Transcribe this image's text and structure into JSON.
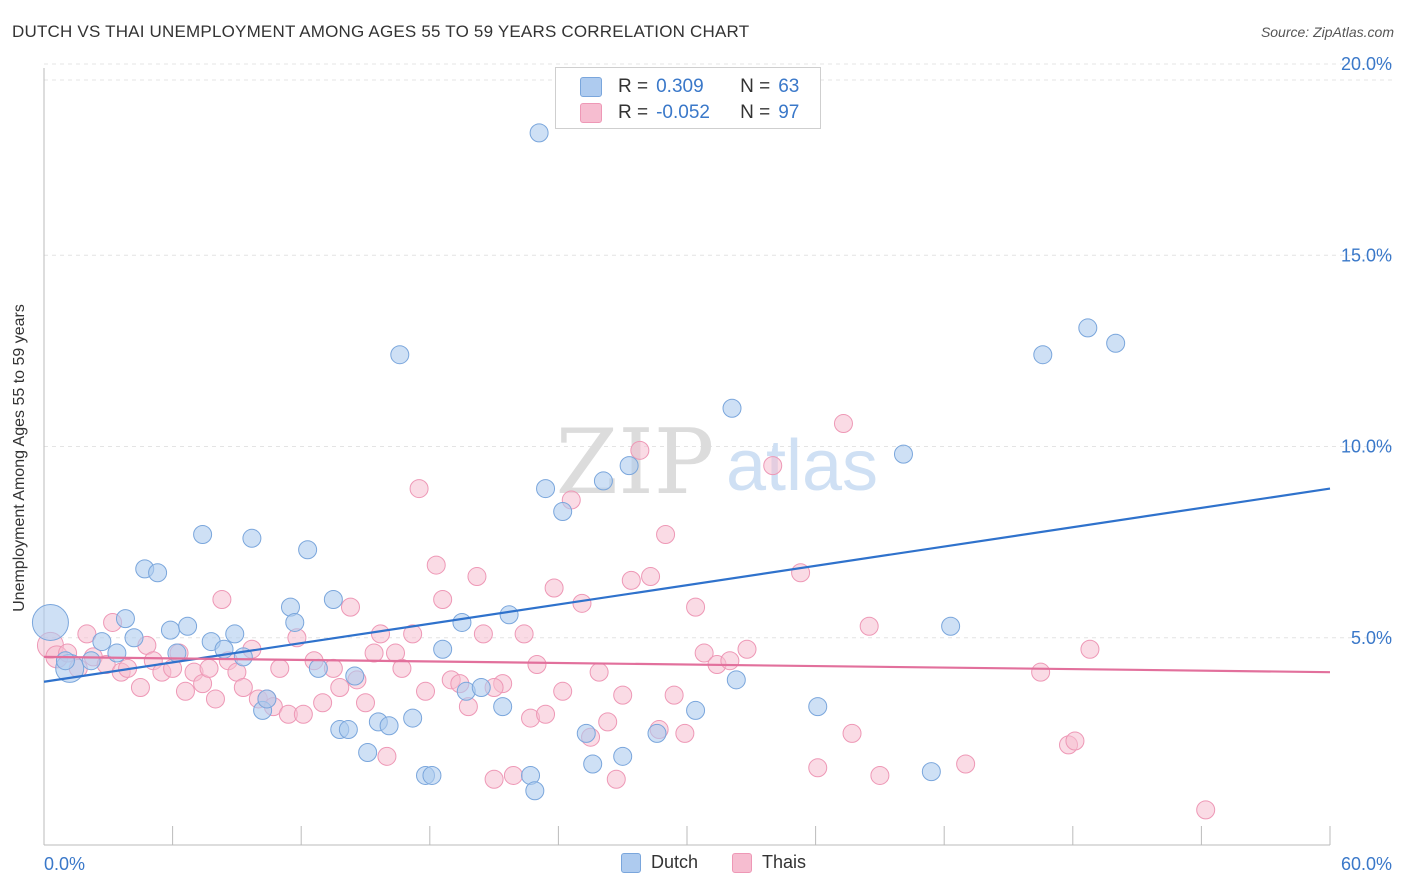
{
  "title": "DUTCH VS THAI UNEMPLOYMENT AMONG AGES 55 TO 59 YEARS CORRELATION CHART",
  "source": "Source: ZipAtlas.com",
  "watermark": {
    "zip": "ZIP",
    "atlas": "atlas"
  },
  "legend": {
    "r_label": "R =",
    "n_label": "N =",
    "rows": [
      {
        "series": "Dutch",
        "r": "0.309",
        "n": "63"
      },
      {
        "series": "Thais",
        "r": "-0.052",
        "n": "97"
      }
    ]
  },
  "chart_data": {
    "type": "scatter",
    "title": "DUTCH VS THAI UNEMPLOYMENT AMONG AGES 55 TO 59 YEARS CORRELATION CHART",
    "xlabel": "",
    "ylabel": "Unemployment Among Ages 55 to 59 years",
    "xlim": [
      0,
      60
    ],
    "ylim": [
      0,
      20
    ],
    "x_tick_labels": [
      "0.0%",
      "60.0%"
    ],
    "y_ticks": [
      5,
      10,
      15,
      20
    ],
    "y_tick_labels": [
      "5.0%",
      "10.0%",
      "15.0%",
      "20.0%"
    ],
    "grid": "horizontal dashed",
    "legend_position": "top-center and bottom",
    "colors": {
      "dutch_fill": "#aecbef",
      "dutch_stroke": "#7aa6dc",
      "dutch_line": "#2f72cc",
      "thais_fill": "#f6bdd0",
      "thais_stroke": "#ee98b6",
      "thais_line": "#e2709c",
      "tick_label": "#3a78c9"
    },
    "series": [
      {
        "name": "Dutch",
        "trend": {
          "x": [
            0,
            60
          ],
          "y": [
            3.85,
            8.9
          ]
        },
        "points": [
          [
            0.3,
            5.4,
            18
          ],
          [
            1.2,
            4.2,
            14
          ],
          [
            1.0,
            4.4,
            9
          ],
          [
            2.2,
            4.4,
            9
          ],
          [
            3.4,
            4.6,
            9
          ],
          [
            2.7,
            4.9,
            9
          ],
          [
            3.8,
            5.5,
            9
          ],
          [
            4.2,
            5.0,
            9
          ],
          [
            4.7,
            6.8,
            9
          ],
          [
            5.3,
            6.7,
            9
          ],
          [
            5.9,
            5.2,
            9
          ],
          [
            6.2,
            4.6,
            9
          ],
          [
            6.7,
            5.3,
            9
          ],
          [
            7.4,
            7.7,
            9
          ],
          [
            7.8,
            4.9,
            9
          ],
          [
            8.4,
            4.7,
            9
          ],
          [
            8.9,
            5.1,
            9
          ],
          [
            9.3,
            4.5,
            9
          ],
          [
            9.7,
            7.6,
            9
          ],
          [
            10.2,
            3.1,
            9
          ],
          [
            10.4,
            3.4,
            9
          ],
          [
            11.5,
            5.8,
            9
          ],
          [
            11.7,
            5.4,
            9
          ],
          [
            12.3,
            7.3,
            9
          ],
          [
            12.8,
            4.2,
            9
          ],
          [
            13.5,
            6.0,
            9
          ],
          [
            13.8,
            2.6,
            9
          ],
          [
            14.2,
            2.6,
            9
          ],
          [
            14.5,
            4.0,
            9
          ],
          [
            15.1,
            2.0,
            9
          ],
          [
            15.6,
            2.8,
            9
          ],
          [
            16.1,
            2.7,
            9
          ],
          [
            16.6,
            12.4,
            9
          ],
          [
            17.2,
            2.9,
            9
          ],
          [
            17.8,
            1.4,
            9
          ],
          [
            18.1,
            1.4,
            9
          ],
          [
            18.6,
            4.7,
            9
          ],
          [
            19.5,
            5.4,
            9
          ],
          [
            19.7,
            3.6,
            9
          ],
          [
            20.4,
            3.7,
            9
          ],
          [
            21.4,
            3.2,
            9
          ],
          [
            21.7,
            5.6,
            9
          ],
          [
            22.7,
            1.4,
            9
          ],
          [
            22.9,
            1.0,
            9
          ],
          [
            23.4,
            8.9,
            9
          ],
          [
            23.1,
            18.2,
            9
          ],
          [
            24.2,
            8.3,
            9
          ],
          [
            25.3,
            2.5,
            9
          ],
          [
            25.6,
            1.7,
            9
          ],
          [
            26.1,
            9.1,
            9
          ],
          [
            27.0,
            1.9,
            9
          ],
          [
            27.3,
            9.5,
            9
          ],
          [
            28.6,
            2.5,
            9
          ],
          [
            30.4,
            3.1,
            9
          ],
          [
            32.1,
            11.0,
            9
          ],
          [
            32.3,
            3.9,
            9
          ],
          [
            36.1,
            3.2,
            9
          ],
          [
            40.1,
            9.8,
            9
          ],
          [
            41.4,
            1.5,
            9
          ],
          [
            42.3,
            5.3,
            9
          ],
          [
            46.6,
            12.4,
            9
          ],
          [
            48.7,
            13.1,
            9
          ],
          [
            50.0,
            12.7,
            9
          ]
        ]
      },
      {
        "name": "Thais",
        "trend": {
          "x": [
            0,
            60
          ],
          "y": [
            4.5,
            4.1
          ]
        },
        "points": [
          [
            0.3,
            4.8,
            13
          ],
          [
            0.6,
            4.5,
            11
          ],
          [
            1.1,
            4.6,
            9
          ],
          [
            1.6,
            4.2,
            9
          ],
          [
            2.0,
            5.1,
            9
          ],
          [
            2.3,
            4.5,
            9
          ],
          [
            2.9,
            4.3,
            9
          ],
          [
            3.2,
            5.4,
            9
          ],
          [
            3.6,
            4.1,
            9
          ],
          [
            3.9,
            4.2,
            9
          ],
          [
            4.5,
            3.7,
            9
          ],
          [
            4.8,
            4.8,
            9
          ],
          [
            5.1,
            4.4,
            9
          ],
          [
            5.5,
            4.1,
            9
          ],
          [
            6.0,
            4.2,
            9
          ],
          [
            6.3,
            4.6,
            9
          ],
          [
            6.6,
            3.6,
            9
          ],
          [
            7.0,
            4.1,
            9
          ],
          [
            7.4,
            3.8,
            9
          ],
          [
            7.7,
            4.2,
            9
          ],
          [
            8.0,
            3.4,
            9
          ],
          [
            8.3,
            6.0,
            9
          ],
          [
            8.6,
            4.4,
            9
          ],
          [
            9.0,
            4.1,
            9
          ],
          [
            9.3,
            3.7,
            9
          ],
          [
            9.7,
            4.7,
            9
          ],
          [
            10.0,
            3.4,
            9
          ],
          [
            10.4,
            3.4,
            9
          ],
          [
            10.7,
            3.2,
            9
          ],
          [
            11.0,
            4.2,
            9
          ],
          [
            11.4,
            3.0,
            9
          ],
          [
            11.8,
            5.0,
            9
          ],
          [
            12.1,
            3.0,
            9
          ],
          [
            12.6,
            4.4,
            9
          ],
          [
            13.0,
            3.3,
            9
          ],
          [
            13.5,
            4.2,
            9
          ],
          [
            13.8,
            3.7,
            9
          ],
          [
            14.3,
            5.8,
            9
          ],
          [
            14.6,
            3.9,
            9
          ],
          [
            15.0,
            3.3,
            9
          ],
          [
            15.4,
            4.6,
            9
          ],
          [
            15.7,
            5.1,
            9
          ],
          [
            16.0,
            1.9,
            9
          ],
          [
            16.4,
            4.6,
            9
          ],
          [
            16.7,
            4.2,
            9
          ],
          [
            17.2,
            5.1,
            9
          ],
          [
            17.5,
            8.9,
            9
          ],
          [
            17.8,
            3.6,
            9
          ],
          [
            18.3,
            6.9,
            9
          ],
          [
            18.6,
            6.0,
            9
          ],
          [
            19.0,
            3.9,
            9
          ],
          [
            19.4,
            3.8,
            9
          ],
          [
            19.8,
            3.2,
            9
          ],
          [
            20.2,
            6.6,
            9
          ],
          [
            20.5,
            5.1,
            9
          ],
          [
            21.0,
            1.3,
            9
          ],
          [
            21.4,
            3.8,
            9
          ],
          [
            21.9,
            1.4,
            9
          ],
          [
            22.4,
            5.1,
            9
          ],
          [
            22.7,
            2.9,
            9
          ],
          [
            23.0,
            4.3,
            9
          ],
          [
            23.4,
            3.0,
            9
          ],
          [
            23.8,
            6.3,
            9
          ],
          [
            24.2,
            3.6,
            9
          ],
          [
            24.6,
            8.6,
            9
          ],
          [
            25.1,
            5.9,
            9
          ],
          [
            25.5,
            2.4,
            9
          ],
          [
            25.9,
            4.1,
            9
          ],
          [
            26.3,
            2.8,
            9
          ],
          [
            26.7,
            1.3,
            9
          ],
          [
            27.0,
            3.5,
            9
          ],
          [
            27.4,
            6.5,
            9
          ],
          [
            27.8,
            9.9,
            9
          ],
          [
            28.3,
            6.6,
            9
          ],
          [
            28.7,
            2.6,
            9
          ],
          [
            29.0,
            7.7,
            9
          ],
          [
            29.4,
            3.5,
            9
          ],
          [
            29.9,
            2.5,
            9
          ],
          [
            30.4,
            5.8,
            9
          ],
          [
            30.8,
            4.6,
            9
          ],
          [
            31.4,
            4.3,
            9
          ],
          [
            32.0,
            4.4,
            9
          ],
          [
            32.8,
            4.7,
            9
          ],
          [
            34.0,
            9.5,
            9
          ],
          [
            35.3,
            6.7,
            9
          ],
          [
            36.1,
            1.6,
            9
          ],
          [
            37.3,
            10.6,
            9
          ],
          [
            37.7,
            2.5,
            9
          ],
          [
            38.5,
            5.3,
            9
          ],
          [
            39.0,
            1.4,
            9
          ],
          [
            43.0,
            1.7,
            9
          ],
          [
            46.5,
            4.1,
            9
          ],
          [
            47.8,
            2.2,
            9
          ],
          [
            48.1,
            2.3,
            9
          ],
          [
            48.8,
            4.7,
            9
          ],
          [
            54.2,
            0.5,
            9
          ],
          [
            21.0,
            3.7,
            9
          ]
        ]
      }
    ]
  }
}
